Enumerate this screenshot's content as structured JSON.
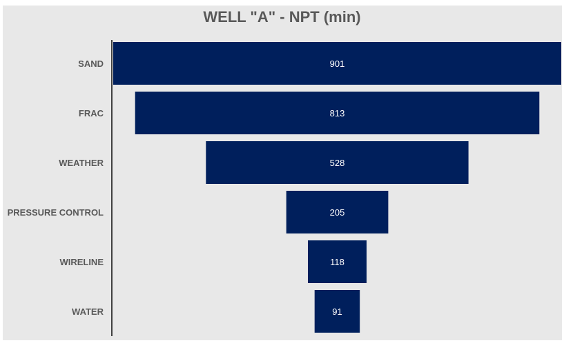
{
  "chart_data": {
    "type": "bar",
    "subtype": "funnel",
    "title": "WELL \"A\" - NPT (min)",
    "xlabel": "",
    "ylabel": "",
    "categories": [
      "SAND",
      "FRAC",
      "WEATHER",
      "PRESSURE CONTROL",
      "WIRELINE",
      "WATER"
    ],
    "values": [
      901,
      813,
      528,
      205,
      118,
      91
    ],
    "grid": false,
    "legend": "none",
    "colors": {
      "bar": "#001f5c",
      "background": "#e8e8e8",
      "text": "#595959",
      "value_text": "#ffffff",
      "axis": "#404040"
    }
  }
}
